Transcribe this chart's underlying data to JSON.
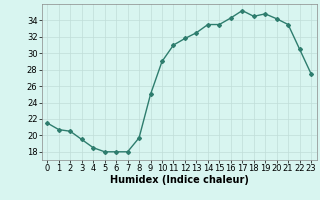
{
  "x": [
    0,
    1,
    2,
    3,
    4,
    5,
    6,
    7,
    8,
    9,
    10,
    11,
    12,
    13,
    14,
    15,
    16,
    17,
    18,
    19,
    20,
    21,
    22,
    23
  ],
  "y": [
    21.5,
    20.7,
    20.5,
    19.5,
    18.5,
    18.0,
    18.0,
    18.0,
    19.7,
    25.0,
    29.0,
    31.0,
    31.8,
    32.5,
    33.5,
    33.5,
    34.3,
    35.2,
    34.5,
    34.8,
    34.2,
    33.5,
    30.5,
    27.5
  ],
  "line_color": "#2e7d6e",
  "marker": "D",
  "marker_size": 2,
  "background_color": "#d8f5f0",
  "grid_color": "#c0ddd8",
  "xlabel": "Humidex (Indice chaleur)",
  "ylim": [
    17,
    36
  ],
  "xlim": [
    -0.5,
    23.5
  ],
  "yticks": [
    18,
    20,
    22,
    24,
    26,
    28,
    30,
    32,
    34
  ],
  "xticks": [
    0,
    1,
    2,
    3,
    4,
    5,
    6,
    7,
    8,
    9,
    10,
    11,
    12,
    13,
    14,
    15,
    16,
    17,
    18,
    19,
    20,
    21,
    22,
    23
  ],
  "tick_fontsize": 6,
  "xlabel_fontsize": 7,
  "line_width": 1.0
}
